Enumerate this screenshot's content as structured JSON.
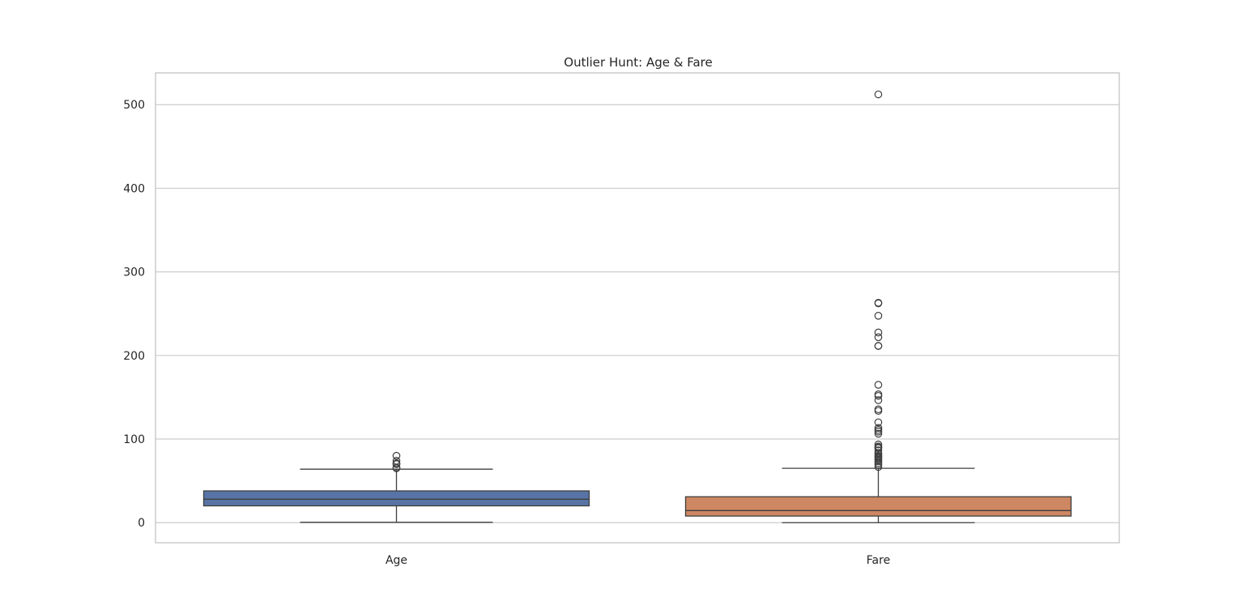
{
  "chart_data": {
    "type": "box",
    "title": "Outlier Hunt: Age & Fare",
    "xlabel": "",
    "ylabel": "",
    "ylim": [
      -24,
      538
    ],
    "yticks": [
      0,
      100,
      200,
      300,
      400,
      500
    ],
    "grid": "y",
    "categories": [
      "Age",
      "Fare"
    ],
    "boxes": [
      {
        "category": "Age",
        "color": "#5874a6",
        "whisker_low": 0.42,
        "q1": 20.1,
        "median": 28,
        "q3": 38,
        "whisker_high": 64,
        "outliers": [
          65,
          66,
          70,
          70.5,
          71,
          74,
          80
        ]
      },
      {
        "category": "Fare",
        "color": "#cd8762",
        "whisker_low": 0,
        "q1": 7.9,
        "median": 14.45,
        "q3": 31,
        "whisker_high": 65,
        "outliers": [
          66.6,
          69.3,
          71.3,
          73.5,
          75.3,
          76.7,
          77.9,
          79.2,
          80,
          82.2,
          83.2,
          86.5,
          89.1,
          90,
          91.1,
          93.5,
          106.4,
          108.9,
          110.9,
          113.3,
          120,
          133.7,
          135.6,
          146.5,
          151.6,
          153.5,
          164.9,
          211.3,
          211.5,
          221.8,
          227.5,
          247.5,
          262.4,
          263,
          512.3
        ]
      }
    ]
  }
}
